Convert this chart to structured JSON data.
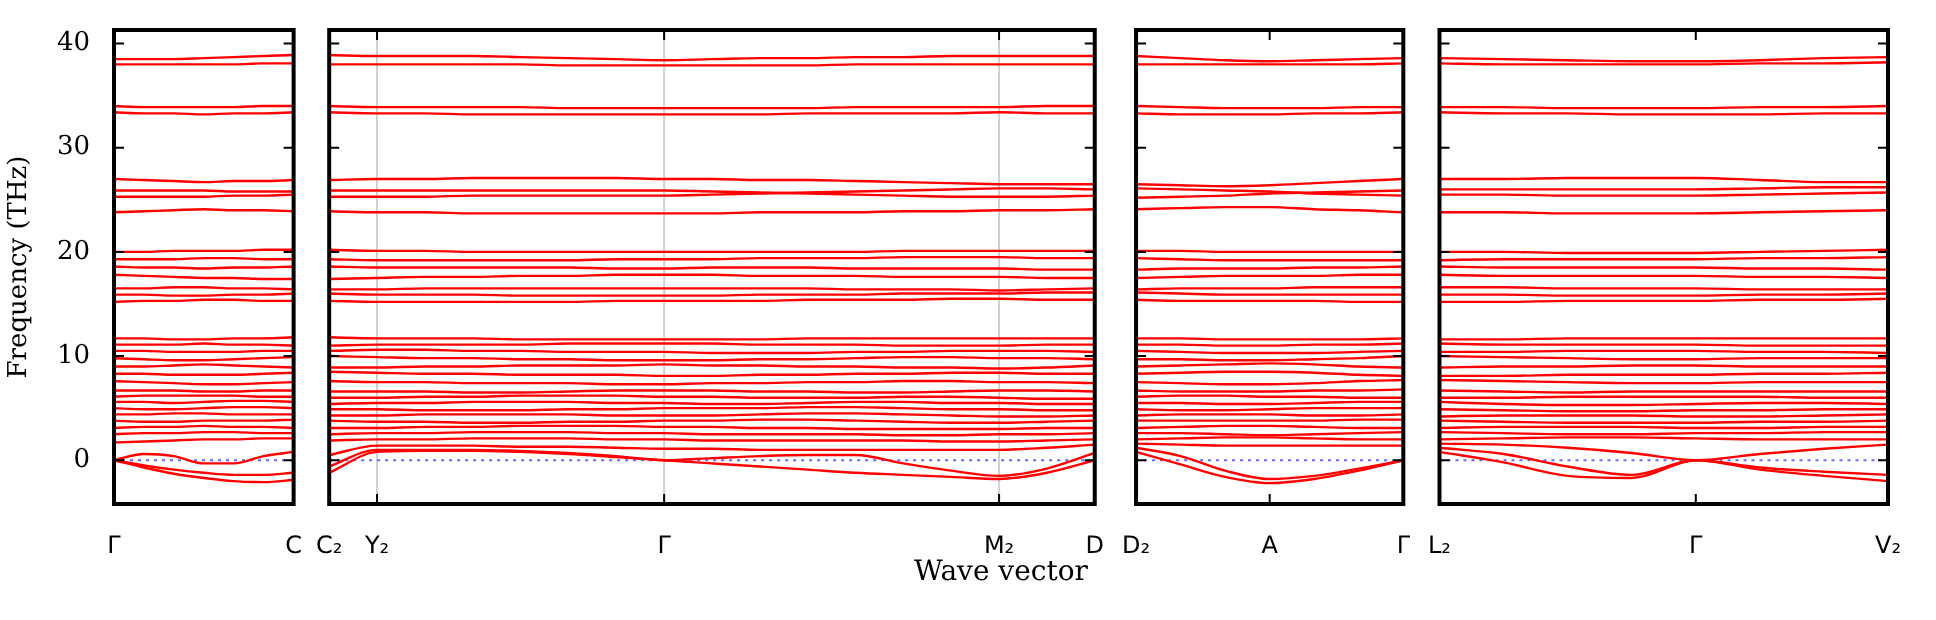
{
  "chart_data": [
    {
      "type": "line",
      "ylabel": "Frequency (THz)",
      "categories": [
        "Γ",
        null,
        null,
        null,
        null,
        null,
        "C"
      ],
      "ylim": [
        -4.2,
        41.3
      ],
      "yticks": [
        0,
        10,
        20,
        30,
        40
      ],
      "legend": false,
      "marker": "none",
      "line_style": "solid",
      "ref_lines": [
        {
          "axis": "y",
          "value": 0,
          "color": "#6666ff",
          "line_style": "dotted"
        }
      ],
      "series": [
        {
          "color": "#ff0000",
          "values": [
            0,
            -0.7,
            -1.3,
            -1.7,
            -2.0,
            -2.1,
            -1.9
          ]
        },
        {
          "color": "#ff0000",
          "values": [
            0,
            -0.5,
            -0.9,
            -1.2,
            -1.4,
            -1.4,
            -1.2
          ]
        },
        {
          "color": "#ff0000",
          "values": [
            0,
            0.6,
            0.4,
            -0.3,
            -0.3,
            0.4,
            0.8
          ]
        },
        {
          "color": "#ff0000",
          "values": [
            1.7,
            1.8,
            1.9,
            2.0,
            2.0,
            2.1,
            2.1
          ]
        },
        {
          "color": "#ff0000",
          "values": [
            2.5,
            2.6,
            2.6,
            2.7,
            2.7,
            2.6,
            2.6
          ]
        },
        {
          "color": "#ff0000",
          "values": [
            3.1,
            3.2,
            3.2,
            3.3,
            3.2,
            3.2,
            3.1
          ]
        },
        {
          "color": "#ff0000",
          "values": [
            3.8,
            3.7,
            3.7,
            3.8,
            3.8,
            3.8,
            3.9
          ]
        },
        {
          "color": "#ff0000",
          "values": [
            4.4,
            4.4,
            4.5,
            4.5,
            4.4,
            4.4,
            4.4
          ]
        },
        {
          "color": "#ff0000",
          "values": [
            5.0,
            4.9,
            4.9,
            5.0,
            5.1,
            5.1,
            5.0
          ]
        },
        {
          "color": "#ff0000",
          "values": [
            5.6,
            5.6,
            5.5,
            5.6,
            5.7,
            5.7,
            5.6
          ]
        },
        {
          "color": "#ff0000",
          "values": [
            6.1,
            6.2,
            6.2,
            6.2,
            6.2,
            6.1,
            6.1
          ]
        },
        {
          "color": "#ff0000",
          "values": [
            6.7,
            6.7,
            6.7,
            6.6,
            6.6,
            6.7,
            6.7
          ]
        },
        {
          "color": "#ff0000",
          "values": [
            7.6,
            7.5,
            7.4,
            7.3,
            7.3,
            7.4,
            7.5
          ]
        },
        {
          "color": "#ff0000",
          "values": [
            8.3,
            8.3,
            8.2,
            8.2,
            8.2,
            8.3,
            8.4
          ]
        },
        {
          "color": "#ff0000",
          "values": [
            9.0,
            9.0,
            9.1,
            9.2,
            9.1,
            9.0,
            8.9
          ]
        },
        {
          "color": "#ff0000",
          "values": [
            9.8,
            9.7,
            9.6,
            9.6,
            9.7,
            9.8,
            9.9
          ]
        },
        {
          "color": "#ff0000",
          "values": [
            10.5,
            10.5,
            10.4,
            10.4,
            10.4,
            10.5,
            10.5
          ]
        },
        {
          "color": "#ff0000",
          "values": [
            11.1,
            11.1,
            11.1,
            11.2,
            11.1,
            11.1,
            11.0
          ]
        },
        {
          "color": "#ff0000",
          "values": [
            11.7,
            11.7,
            11.6,
            11.6,
            11.7,
            11.7,
            11.8
          ]
        },
        {
          "color": "#ff0000",
          "values": [
            15.2,
            15.3,
            15.3,
            15.4,
            15.4,
            15.3,
            15.3
          ]
        },
        {
          "color": "#ff0000",
          "values": [
            15.9,
            15.9,
            15.8,
            15.8,
            15.9,
            15.9,
            16.0
          ]
        },
        {
          "color": "#ff0000",
          "values": [
            16.5,
            16.5,
            16.6,
            16.6,
            16.5,
            16.5,
            16.4
          ]
        },
        {
          "color": "#ff0000",
          "values": [
            17.8,
            17.7,
            17.6,
            17.5,
            17.5,
            17.4,
            17.4
          ]
        },
        {
          "color": "#ff0000",
          "values": [
            18.6,
            18.5,
            18.5,
            18.4,
            18.5,
            18.5,
            18.6
          ]
        },
        {
          "color": "#ff0000",
          "values": [
            19.3,
            19.3,
            19.3,
            19.4,
            19.4,
            19.3,
            19.3
          ]
        },
        {
          "color": "#ff0000",
          "values": [
            20.0,
            20.0,
            20.1,
            20.1,
            20.1,
            20.2,
            20.2
          ]
        },
        {
          "color": "#ff0000",
          "values": [
            23.8,
            23.9,
            24.0,
            24.1,
            24.0,
            24.0,
            23.9
          ]
        },
        {
          "color": "#ff0000",
          "values": [
            25.3,
            25.3,
            25.3,
            25.3,
            25.4,
            25.4,
            25.5
          ]
        },
        {
          "color": "#ff0000",
          "values": [
            25.9,
            25.9,
            25.9,
            25.9,
            25.8,
            25.8,
            25.8
          ]
        },
        {
          "color": "#ff0000",
          "values": [
            27.0,
            26.9,
            26.8,
            26.7,
            26.8,
            26.8,
            26.9
          ]
        },
        {
          "color": "#ff0000",
          "values": [
            33.4,
            33.3,
            33.3,
            33.2,
            33.3,
            33.3,
            33.4
          ]
        },
        {
          "color": "#ff0000",
          "values": [
            34.0,
            33.9,
            33.9,
            33.9,
            33.9,
            34.0,
            34.0
          ]
        },
        {
          "color": "#ff0000",
          "values": [
            38.0,
            38.0,
            38.0,
            38.0,
            38.0,
            38.1,
            38.1
          ]
        },
        {
          "color": "#ff0000",
          "values": [
            38.5,
            38.5,
            38.5,
            38.6,
            38.7,
            38.8,
            38.9
          ]
        }
      ]
    },
    {
      "type": "line",
      "xlabel": "Wave vector",
      "tick_labels": "x",
      "categories": [
        "C₂",
        "Y₂",
        null,
        null,
        null,
        null,
        null,
        "Γ",
        null,
        null,
        null,
        null,
        null,
        null,
        "M₂",
        null,
        "D"
      ],
      "ylim": [
        -4.2,
        41.3
      ],
      "yticks": [
        0,
        10,
        20,
        30,
        40
      ],
      "grid": "x",
      "legend": false,
      "marker": "none",
      "line_style": "solid",
      "ref_lines": [
        {
          "axis": "y",
          "value": 0,
          "color": "#6666ff",
          "line_style": "dotted"
        }
      ],
      "series": [
        {
          "color": "#ff0000",
          "values": [
            -1.2,
            0.8,
            0.9,
            0.9,
            0.8,
            0.6,
            0.3,
            0,
            -0.3,
            -0.6,
            -0.9,
            -1.2,
            -1.4,
            -1.6,
            -1.8,
            -1.2,
            0.0
          ]
        },
        {
          "color": "#ff0000",
          "values": [
            -0.6,
            1.0,
            1.0,
            1.0,
            0.9,
            0.7,
            0.4,
            0,
            0.2,
            0.4,
            0.5,
            0.5,
            -0.3,
            -1.0,
            -1.5,
            -0.8,
            0.7
          ]
        },
        {
          "color": "#ff0000",
          "values": [
            0.5,
            1.4,
            1.4,
            1.4,
            1.3,
            1.3,
            1.2,
            1.1,
            1.1,
            1.0,
            1.0,
            1.0,
            1.0,
            1.0,
            1.0,
            1.2,
            1.5
          ]
        },
        {
          "color": "#ff0000",
          "values": [
            1.9,
            2.0,
            2.0,
            2.1,
            2.1,
            2.1,
            2.0,
            2.0,
            1.9,
            1.9,
            1.9,
            1.9,
            1.9,
            1.8,
            1.8,
            1.9,
            2.0
          ]
        },
        {
          "color": "#ff0000",
          "values": [
            2.5,
            2.6,
            2.6,
            2.7,
            2.7,
            2.7,
            2.6,
            2.6,
            2.5,
            2.5,
            2.5,
            2.5,
            2.4,
            2.4,
            2.5,
            2.5,
            2.6
          ]
        },
        {
          "color": "#ff0000",
          "values": [
            3.1,
            3.1,
            3.2,
            3.2,
            3.3,
            3.3,
            3.3,
            3.2,
            3.2,
            3.1,
            3.1,
            3.0,
            3.0,
            3.0,
            3.0,
            3.1,
            3.1
          ]
        },
        {
          "color": "#ff0000",
          "values": [
            3.8,
            3.7,
            3.7,
            3.6,
            3.6,
            3.7,
            3.7,
            3.8,
            3.8,
            3.9,
            3.9,
            3.8,
            3.7,
            3.6,
            3.6,
            3.7,
            3.8
          ]
        },
        {
          "color": "#ff0000",
          "values": [
            4.3,
            4.3,
            4.4,
            4.4,
            4.4,
            4.4,
            4.3,
            4.3,
            4.3,
            4.4,
            4.5,
            4.5,
            4.4,
            4.3,
            4.2,
            4.2,
            4.3
          ]
        },
        {
          "color": "#ff0000",
          "values": [
            4.9,
            4.9,
            4.8,
            4.8,
            4.8,
            4.9,
            4.9,
            5.0,
            5.0,
            5.0,
            5.1,
            5.1,
            5.0,
            4.9,
            4.9,
            4.8,
            4.8
          ]
        },
        {
          "color": "#ff0000",
          "values": [
            5.4,
            5.5,
            5.5,
            5.6,
            5.6,
            5.6,
            5.5,
            5.5,
            5.4,
            5.4,
            5.5,
            5.6,
            5.6,
            5.5,
            5.5,
            5.4,
            5.4
          ]
        },
        {
          "color": "#ff0000",
          "values": [
            6.0,
            6.0,
            6.1,
            6.1,
            6.2,
            6.2,
            6.2,
            6.1,
            6.1,
            6.0,
            6.0,
            6.0,
            6.1,
            6.1,
            6.0,
            5.9,
            5.9
          ]
        },
        {
          "color": "#ff0000",
          "values": [
            6.6,
            6.6,
            6.6,
            6.5,
            6.5,
            6.6,
            6.7,
            6.7,
            6.7,
            6.6,
            6.6,
            6.5,
            6.5,
            6.6,
            6.7,
            6.7,
            6.6
          ]
        },
        {
          "color": "#ff0000",
          "values": [
            7.6,
            7.5,
            7.5,
            7.4,
            7.4,
            7.4,
            7.3,
            7.3,
            7.4,
            7.4,
            7.5,
            7.5,
            7.6,
            7.6,
            7.5,
            7.5,
            7.4
          ]
        },
        {
          "color": "#ff0000",
          "values": [
            8.5,
            8.4,
            8.3,
            8.3,
            8.2,
            8.2,
            8.2,
            8.1,
            8.1,
            8.2,
            8.2,
            8.3,
            8.3,
            8.4,
            8.4,
            8.3,
            8.3
          ]
        },
        {
          "color": "#ff0000",
          "values": [
            8.9,
            8.9,
            9.0,
            9.0,
            9.1,
            9.1,
            9.1,
            9.2,
            9.1,
            9.1,
            9.0,
            9.0,
            8.9,
            8.9,
            8.8,
            8.9,
            9.1
          ]
        },
        {
          "color": "#ff0000",
          "values": [
            10.0,
            9.9,
            9.8,
            9.8,
            9.7,
            9.7,
            9.6,
            9.6,
            9.6,
            9.7,
            9.7,
            9.8,
            9.9,
            9.9,
            9.8,
            9.8,
            9.7
          ]
        },
        {
          "color": "#ff0000",
          "values": [
            10.5,
            10.6,
            10.6,
            10.5,
            10.5,
            10.4,
            10.4,
            10.4,
            10.3,
            10.3,
            10.3,
            10.4,
            10.4,
            10.5,
            10.5,
            10.5,
            10.4
          ]
        },
        {
          "color": "#ff0000",
          "values": [
            11.0,
            11.1,
            11.1,
            11.1,
            11.1,
            11.2,
            11.2,
            11.2,
            11.2,
            11.1,
            11.1,
            11.1,
            11.0,
            11.0,
            11.0,
            11.1,
            11.1
          ]
        },
        {
          "color": "#ff0000",
          "values": [
            11.8,
            11.7,
            11.7,
            11.7,
            11.6,
            11.6,
            11.6,
            11.6,
            11.6,
            11.6,
            11.7,
            11.7,
            11.7,
            11.7,
            11.7,
            11.7,
            11.7
          ]
        },
        {
          "color": "#ff0000",
          "values": [
            15.3,
            15.2,
            15.2,
            15.2,
            15.2,
            15.2,
            15.3,
            15.3,
            15.3,
            15.3,
            15.4,
            15.4,
            15.4,
            15.5,
            15.5,
            15.4,
            15.4
          ]
        },
        {
          "color": "#ff0000",
          "values": [
            16.0,
            15.9,
            15.9,
            15.9,
            15.8,
            15.8,
            15.8,
            15.8,
            15.8,
            15.9,
            15.9,
            15.9,
            16.0,
            16.0,
            16.0,
            16.1,
            16.1
          ]
        },
        {
          "color": "#ff0000",
          "values": [
            16.4,
            16.4,
            16.5,
            16.5,
            16.5,
            16.5,
            16.5,
            16.5,
            16.5,
            16.5,
            16.5,
            16.4,
            16.4,
            16.4,
            16.3,
            16.4,
            16.5
          ]
        },
        {
          "color": "#ff0000",
          "values": [
            17.4,
            17.5,
            17.6,
            17.6,
            17.7,
            17.7,
            17.8,
            17.8,
            17.8,
            17.7,
            17.7,
            17.7,
            17.6,
            17.6,
            17.6,
            17.5,
            17.5
          ]
        },
        {
          "color": "#ff0000",
          "values": [
            18.6,
            18.5,
            18.5,
            18.5,
            18.5,
            18.5,
            18.4,
            18.4,
            18.5,
            18.5,
            18.5,
            18.4,
            18.4,
            18.4,
            18.4,
            18.3,
            18.3
          ]
        },
        {
          "color": "#ff0000",
          "values": [
            19.3,
            19.2,
            19.2,
            19.2,
            19.2,
            19.2,
            19.3,
            19.3,
            19.3,
            19.4,
            19.4,
            19.4,
            19.5,
            19.5,
            19.5,
            19.4,
            19.4
          ]
        },
        {
          "color": "#ff0000",
          "values": [
            20.2,
            20.1,
            20.1,
            20.0,
            20.0,
            20.0,
            20.0,
            20.0,
            20.0,
            20.0,
            20.0,
            20.0,
            20.1,
            20.1,
            20.1,
            20.1,
            20.1
          ]
        },
        {
          "color": "#ff0000",
          "values": [
            23.9,
            23.8,
            23.8,
            23.7,
            23.7,
            23.7,
            23.7,
            23.7,
            23.7,
            23.8,
            23.8,
            23.8,
            23.9,
            23.9,
            24.0,
            24.0,
            24.1
          ]
        },
        {
          "color": "#ff0000",
          "values": [
            25.3,
            25.3,
            25.3,
            25.4,
            25.4,
            25.4,
            25.4,
            25.4,
            25.5,
            25.6,
            25.7,
            25.8,
            25.9,
            26.0,
            26.1,
            26.1,
            26.0
          ]
        },
        {
          "color": "#ff0000",
          "values": [
            25.9,
            25.9,
            25.9,
            25.9,
            25.9,
            25.9,
            25.9,
            25.9,
            25.8,
            25.7,
            25.6,
            25.5,
            25.4,
            25.3,
            25.3,
            25.3,
            25.4
          ]
        },
        {
          "color": "#ff0000",
          "values": [
            26.9,
            27.0,
            27.0,
            27.1,
            27.1,
            27.1,
            27.1,
            27.0,
            27.0,
            26.9,
            26.9,
            26.8,
            26.7,
            26.6,
            26.5,
            26.5,
            26.5
          ]
        },
        {
          "color": "#ff0000",
          "values": [
            33.4,
            33.3,
            33.3,
            33.2,
            33.2,
            33.2,
            33.2,
            33.2,
            33.2,
            33.2,
            33.3,
            33.3,
            33.3,
            33.3,
            33.4,
            33.3,
            33.3
          ]
        },
        {
          "color": "#ff0000",
          "values": [
            34.0,
            33.9,
            33.9,
            33.9,
            33.9,
            33.8,
            33.8,
            33.8,
            33.8,
            33.8,
            33.8,
            33.9,
            33.9,
            33.9,
            33.9,
            34.0,
            34.0
          ]
        },
        {
          "color": "#ff0000",
          "values": [
            38.0,
            38.0,
            38.0,
            38.0,
            38.0,
            37.9,
            37.9,
            37.9,
            37.9,
            37.9,
            37.9,
            38.0,
            38.0,
            38.0,
            38.0,
            38.0,
            38.0
          ]
        },
        {
          "color": "#ff0000",
          "values": [
            38.9,
            38.8,
            38.8,
            38.8,
            38.7,
            38.6,
            38.5,
            38.4,
            38.5,
            38.6,
            38.6,
            38.7,
            38.7,
            38.8,
            38.8,
            38.8,
            38.8
          ]
        }
      ]
    },
    {
      "type": "line",
      "tick_labels": "x",
      "categories": [
        "D₂",
        null,
        null,
        "A",
        null,
        null,
        "Γ"
      ],
      "ylim": [
        -4.2,
        41.3
      ],
      "yticks": [
        0,
        10,
        20,
        30,
        40
      ],
      "legend": false,
      "marker": "none",
      "line_style": "solid",
      "ref_lines": [
        {
          "axis": "y",
          "value": 0,
          "color": "#6666ff",
          "line_style": "dotted"
        }
      ],
      "series": [
        {
          "color": "#ff0000",
          "values": [
            0.8,
            -0.4,
            -1.6,
            -2.2,
            -1.8,
            -1.0,
            0
          ]
        },
        {
          "color": "#ff0000",
          "values": [
            1.2,
            0.4,
            -1.0,
            -1.8,
            -1.5,
            -0.8,
            0
          ]
        },
        {
          "color": "#ff0000",
          "values": [
            1.6,
            1.5,
            1.4,
            1.4,
            1.4,
            1.4,
            1.4
          ]
        },
        {
          "color": "#ff0000",
          "values": [
            2.0,
            2.1,
            2.2,
            2.2,
            2.1,
            2.0,
            2.0
          ]
        },
        {
          "color": "#ff0000",
          "values": [
            2.6,
            2.6,
            2.5,
            2.4,
            2.5,
            2.6,
            2.7
          ]
        },
        {
          "color": "#ff0000",
          "values": [
            3.1,
            3.2,
            3.3,
            3.3,
            3.2,
            3.1,
            3.1
          ]
        },
        {
          "color": "#ff0000",
          "values": [
            3.8,
            3.8,
            3.8,
            3.8,
            3.8,
            3.9,
            3.9
          ]
        },
        {
          "color": "#ff0000",
          "values": [
            4.3,
            4.4,
            4.4,
            4.4,
            4.3,
            4.3,
            4.4
          ]
        },
        {
          "color": "#ff0000",
          "values": [
            4.9,
            4.8,
            4.8,
            4.9,
            5.0,
            5.0,
            5.0
          ]
        },
        {
          "color": "#ff0000",
          "values": [
            5.5,
            5.5,
            5.4,
            5.4,
            5.5,
            5.6,
            5.6
          ]
        },
        {
          "color": "#ff0000",
          "values": [
            6.1,
            6.2,
            6.2,
            6.1,
            6.1,
            6.0,
            6.0
          ]
        },
        {
          "color": "#ff0000",
          "values": [
            6.7,
            6.6,
            6.6,
            6.6,
            6.7,
            6.7,
            6.8
          ]
        },
        {
          "color": "#ff0000",
          "values": [
            7.5,
            7.4,
            7.3,
            7.3,
            7.4,
            7.6,
            7.7
          ]
        },
        {
          "color": "#ff0000",
          "values": [
            8.3,
            8.4,
            8.5,
            8.5,
            8.4,
            8.2,
            8.1
          ]
        },
        {
          "color": "#ff0000",
          "values": [
            9.0,
            9.1,
            9.2,
            9.3,
            9.2,
            9.0,
            8.9
          ]
        },
        {
          "color": "#ff0000",
          "values": [
            9.7,
            9.7,
            9.6,
            9.6,
            9.7,
            9.8,
            10.0
          ]
        },
        {
          "color": "#ff0000",
          "values": [
            10.5,
            10.4,
            10.3,
            10.3,
            10.3,
            10.4,
            10.5
          ]
        },
        {
          "color": "#ff0000",
          "values": [
            11.1,
            11.1,
            11.0,
            11.0,
            11.1,
            11.1,
            11.2
          ]
        },
        {
          "color": "#ff0000",
          "values": [
            11.7,
            11.7,
            11.6,
            11.6,
            11.6,
            11.6,
            11.7
          ]
        },
        {
          "color": "#ff0000",
          "values": [
            15.4,
            15.3,
            15.3,
            15.3,
            15.3,
            15.2,
            15.2
          ]
        },
        {
          "color": "#ff0000",
          "values": [
            16.1,
            16.0,
            15.9,
            15.9,
            15.9,
            15.9,
            15.9
          ]
        },
        {
          "color": "#ff0000",
          "values": [
            16.4,
            16.5,
            16.5,
            16.5,
            16.6,
            16.6,
            16.6
          ]
        },
        {
          "color": "#ff0000",
          "values": [
            17.5,
            17.6,
            17.7,
            17.7,
            17.7,
            17.8,
            17.8
          ]
        },
        {
          "color": "#ff0000",
          "values": [
            18.3,
            18.4,
            18.4,
            18.4,
            18.5,
            18.5,
            18.6
          ]
        },
        {
          "color": "#ff0000",
          "values": [
            19.4,
            19.3,
            19.2,
            19.2,
            19.2,
            19.2,
            19.2
          ]
        },
        {
          "color": "#ff0000",
          "values": [
            20.1,
            20.1,
            20.0,
            20.0,
            20.0,
            20.0,
            20.0
          ]
        },
        {
          "color": "#ff0000",
          "values": [
            24.1,
            24.2,
            24.3,
            24.3,
            24.1,
            24.0,
            23.8
          ]
        },
        {
          "color": "#ff0000",
          "values": [
            25.2,
            25.3,
            25.4,
            25.6,
            25.7,
            25.8,
            25.9
          ]
        },
        {
          "color": "#ff0000",
          "values": [
            26.1,
            26.0,
            25.9,
            25.8,
            25.6,
            25.5,
            25.4
          ]
        },
        {
          "color": "#ff0000",
          "values": [
            26.5,
            26.4,
            26.3,
            26.4,
            26.6,
            26.8,
            27.0
          ]
        },
        {
          "color": "#ff0000",
          "values": [
            33.3,
            33.2,
            33.2,
            33.2,
            33.3,
            33.3,
            33.4
          ]
        },
        {
          "color": "#ff0000",
          "values": [
            34.0,
            33.9,
            33.8,
            33.8,
            33.8,
            33.9,
            33.9
          ]
        },
        {
          "color": "#ff0000",
          "values": [
            38.0,
            38.0,
            38.0,
            38.0,
            38.0,
            38.0,
            38.1
          ]
        },
        {
          "color": "#ff0000",
          "values": [
            38.8,
            38.6,
            38.4,
            38.3,
            38.4,
            38.5,
            38.6
          ]
        }
      ]
    },
    {
      "type": "line",
      "tick_labels": "x",
      "categories": [
        "L₂",
        null,
        null,
        null,
        "Γ",
        null,
        null,
        "V₂"
      ],
      "ylim": [
        -4.2,
        41.3
      ],
      "yticks": [
        0,
        10,
        20,
        30,
        40
      ],
      "legend": false,
      "marker": "none",
      "line_style": "solid",
      "ref_lines": [
        {
          "axis": "y",
          "value": 0,
          "color": "#6666ff",
          "line_style": "dotted"
        }
      ],
      "series": [
        {
          "color": "#ff0000",
          "values": [
            0.8,
            -0.2,
            -1.5,
            -1.7,
            0,
            -0.7,
            -1.1,
            -1.4
          ]
        },
        {
          "color": "#ff0000",
          "values": [
            1.2,
            0.6,
            -0.6,
            -1.4,
            0,
            -0.9,
            -1.5,
            -2.0
          ]
        },
        {
          "color": "#ff0000",
          "values": [
            1.6,
            1.5,
            1.2,
            0.7,
            0,
            0.6,
            1.1,
            1.5
          ]
        },
        {
          "color": "#ff0000",
          "values": [
            2.0,
            2.1,
            2.2,
            2.2,
            2.1,
            2.0,
            2.0,
            2.0
          ]
        },
        {
          "color": "#ff0000",
          "values": [
            2.7,
            2.6,
            2.5,
            2.5,
            2.6,
            2.6,
            2.7,
            2.7
          ]
        },
        {
          "color": "#ff0000",
          "values": [
            3.1,
            3.2,
            3.2,
            3.2,
            3.1,
            3.1,
            3.2,
            3.2
          ]
        },
        {
          "color": "#ff0000",
          "values": [
            3.8,
            3.7,
            3.6,
            3.6,
            3.6,
            3.7,
            3.7,
            3.8
          ]
        },
        {
          "color": "#ff0000",
          "values": [
            4.2,
            4.3,
            4.3,
            4.3,
            4.2,
            4.2,
            4.3,
            4.4
          ]
        },
        {
          "color": "#ff0000",
          "values": [
            4.9,
            4.8,
            4.7,
            4.7,
            4.8,
            4.8,
            4.9,
            4.9
          ]
        },
        {
          "color": "#ff0000",
          "values": [
            5.6,
            5.4,
            5.3,
            5.3,
            5.4,
            5.5,
            5.5,
            5.4
          ]
        },
        {
          "color": "#ff0000",
          "values": [
            6.0,
            6.0,
            6.1,
            6.1,
            6.1,
            6.1,
            6.0,
            6.0
          ]
        },
        {
          "color": "#ff0000",
          "values": [
            6.7,
            6.6,
            6.5,
            6.6,
            6.6,
            6.6,
            6.6,
            6.6
          ]
        },
        {
          "color": "#ff0000",
          "values": [
            7.7,
            7.6,
            7.5,
            7.4,
            7.4,
            7.5,
            7.5,
            7.5
          ]
        },
        {
          "color": "#ff0000",
          "values": [
            8.1,
            8.1,
            8.2,
            8.2,
            8.2,
            8.3,
            8.3,
            8.4
          ]
        },
        {
          "color": "#ff0000",
          "values": [
            8.9,
            9.0,
            9.0,
            9.1,
            9.1,
            9.0,
            9.0,
            9.0
          ]
        },
        {
          "color": "#ff0000",
          "values": [
            10.0,
            9.9,
            9.8,
            9.7,
            9.7,
            9.8,
            9.8,
            9.8
          ]
        },
        {
          "color": "#ff0000",
          "values": [
            10.4,
            10.4,
            10.5,
            10.5,
            10.5,
            10.4,
            10.4,
            10.3
          ]
        },
        {
          "color": "#ff0000",
          "values": [
            11.2,
            11.1,
            11.1,
            11.1,
            11.1,
            11.0,
            11.0,
            11.0
          ]
        },
        {
          "color": "#ff0000",
          "values": [
            11.6,
            11.6,
            11.7,
            11.7,
            11.7,
            11.7,
            11.7,
            11.7
          ]
        },
        {
          "color": "#ff0000",
          "values": [
            15.2,
            15.2,
            15.3,
            15.3,
            15.3,
            15.4,
            15.4,
            15.5
          ]
        },
        {
          "color": "#ff0000",
          "values": [
            15.9,
            15.9,
            15.8,
            15.8,
            15.8,
            15.9,
            15.9,
            16.0
          ]
        },
        {
          "color": "#ff0000",
          "values": [
            16.6,
            16.6,
            16.5,
            16.5,
            16.5,
            16.4,
            16.4,
            16.4
          ]
        },
        {
          "color": "#ff0000",
          "values": [
            17.8,
            17.7,
            17.7,
            17.7,
            17.7,
            17.6,
            17.6,
            17.5
          ]
        },
        {
          "color": "#ff0000",
          "values": [
            18.6,
            18.5,
            18.5,
            18.5,
            18.5,
            18.4,
            18.4,
            18.3
          ]
        },
        {
          "color": "#ff0000",
          "values": [
            19.2,
            19.3,
            19.3,
            19.3,
            19.3,
            19.4,
            19.4,
            19.5
          ]
        },
        {
          "color": "#ff0000",
          "values": [
            20.0,
            20.0,
            19.9,
            19.9,
            19.9,
            20.0,
            20.1,
            20.2
          ]
        },
        {
          "color": "#ff0000",
          "values": [
            23.8,
            23.8,
            23.7,
            23.7,
            23.7,
            23.8,
            23.9,
            24.0
          ]
        },
        {
          "color": "#ff0000",
          "values": [
            25.5,
            25.5,
            25.4,
            25.4,
            25.4,
            25.5,
            25.6,
            25.7
          ]
        },
        {
          "color": "#ff0000",
          "values": [
            26.0,
            26.0,
            26.0,
            26.0,
            26.0,
            26.1,
            26.2,
            26.2
          ]
        },
        {
          "color": "#ff0000",
          "values": [
            27.0,
            27.0,
            27.1,
            27.1,
            27.1,
            26.9,
            26.7,
            26.7
          ]
        },
        {
          "color": "#ff0000",
          "values": [
            33.4,
            33.3,
            33.3,
            33.2,
            33.2,
            33.2,
            33.3,
            33.3
          ]
        },
        {
          "color": "#ff0000",
          "values": [
            33.9,
            33.9,
            33.8,
            33.8,
            33.8,
            33.9,
            33.9,
            34.0
          ]
        },
        {
          "color": "#ff0000",
          "values": [
            38.1,
            38.0,
            38.0,
            38.0,
            38.0,
            38.1,
            38.1,
            38.2
          ]
        },
        {
          "color": "#ff0000",
          "values": [
            38.6,
            38.5,
            38.4,
            38.3,
            38.3,
            38.4,
            38.6,
            38.7
          ]
        }
      ]
    }
  ]
}
